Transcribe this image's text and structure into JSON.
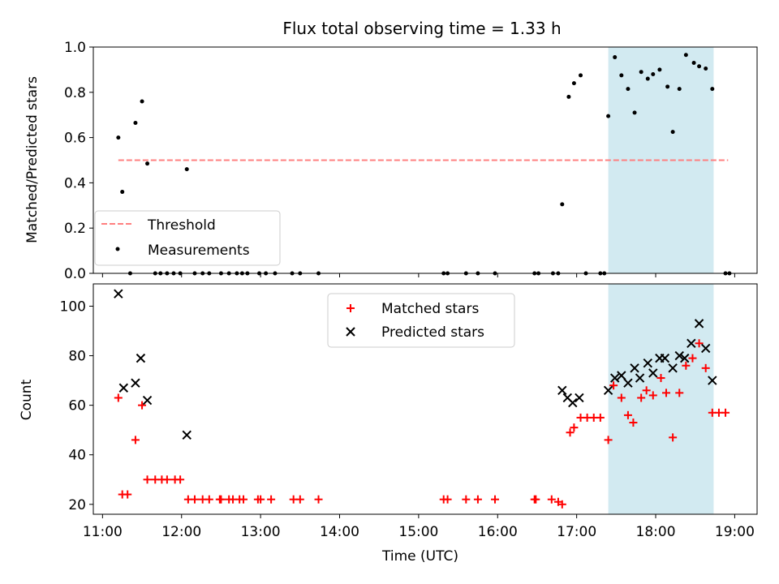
{
  "chart_data": [
    {
      "type": "scatter",
      "title": "Flux total observing time = 1.33 h",
      "xlabel": "",
      "ylabel": "Matched/Predicted stars",
      "ylim": [
        0,
        1.0
      ],
      "xlim": [
        "10:53",
        "19:17"
      ],
      "yticks": [
        "0.0",
        "0.2",
        "0.4",
        "0.6",
        "0.8",
        "1.0"
      ],
      "grid": false,
      "legend": {
        "placement": "lower-left",
        "entries": [
          "Threshold",
          "Measurements"
        ]
      },
      "shaded_span": {
        "start": "17:24",
        "end": "18:44",
        "color": "#add8e6"
      },
      "threshold": {
        "name": "Threshold",
        "value": 0.5,
        "x_start": "11:12",
        "x_end": "18:55",
        "color": "#ff7f7f"
      },
      "series": [
        {
          "name": "Measurements",
          "color": "#000000",
          "points": [
            [
              "11:12",
              0.6
            ],
            [
              "11:15",
              0.36
            ],
            [
              "11:21",
              0.0
            ],
            [
              "11:25",
              0.665
            ],
            [
              "11:30",
              0.76
            ],
            [
              "11:34",
              0.485
            ],
            [
              "11:40",
              0.0
            ],
            [
              "11:44",
              0.0
            ],
            [
              "11:49",
              0.0
            ],
            [
              "11:54",
              0.0
            ],
            [
              "11:59",
              0.0
            ],
            [
              "12:04",
              0.46
            ],
            [
              "12:10",
              0.0
            ],
            [
              "12:16",
              0.0
            ],
            [
              "12:21",
              0.0
            ],
            [
              "12:30",
              0.0
            ],
            [
              "12:36",
              0.0
            ],
            [
              "12:42",
              0.0
            ],
            [
              "12:46",
              0.0
            ],
            [
              "12:50",
              0.0
            ],
            [
              "12:59",
              0.0
            ],
            [
              "13:04",
              0.0
            ],
            [
              "13:11",
              0.0
            ],
            [
              "13:24",
              0.0
            ],
            [
              "13:30",
              0.0
            ],
            [
              "13:44",
              0.0
            ],
            [
              "15:19",
              0.0
            ],
            [
              "15:22",
              0.0
            ],
            [
              "15:36",
              0.0
            ],
            [
              "15:45",
              0.0
            ],
            [
              "15:58",
              0.0
            ],
            [
              "16:28",
              0.0
            ],
            [
              "16:31",
              0.0
            ],
            [
              "16:42",
              0.0
            ],
            [
              "16:46",
              0.0
            ],
            [
              "16:49",
              0.305
            ],
            [
              "16:54",
              0.78
            ],
            [
              "16:58",
              0.84
            ],
            [
              "17:03",
              0.875
            ],
            [
              "17:07",
              0.0
            ],
            [
              "17:18",
              0.0
            ],
            [
              "17:21",
              0.0
            ],
            [
              "17:24",
              0.695
            ],
            [
              "17:29",
              0.955
            ],
            [
              "17:34",
              0.875
            ],
            [
              "17:39",
              0.815
            ],
            [
              "17:44",
              0.71
            ],
            [
              "17:49",
              0.89
            ],
            [
              "17:54",
              0.86
            ],
            [
              "17:58",
              0.88
            ],
            [
              "18:03",
              0.9
            ],
            [
              "18:09",
              0.825
            ],
            [
              "18:13",
              0.625
            ],
            [
              "18:18",
              0.815
            ],
            [
              "18:23",
              0.965
            ],
            [
              "18:29",
              0.93
            ],
            [
              "18:33",
              0.915
            ],
            [
              "18:38",
              0.905
            ],
            [
              "18:43",
              0.815
            ],
            [
              "18:53",
              0.0
            ],
            [
              "18:56",
              0.0
            ]
          ]
        }
      ]
    },
    {
      "type": "scatter",
      "title": "",
      "xlabel": "Time (UTC)",
      "ylabel": "Count",
      "ylim": [
        16,
        109
      ],
      "xlim": [
        "10:53",
        "19:17"
      ],
      "yticks": [
        "20",
        "40",
        "60",
        "80",
        "100"
      ],
      "xticks": [
        "11:00",
        "12:00",
        "13:00",
        "14:00",
        "15:00",
        "16:00",
        "17:00",
        "18:00",
        "19:00"
      ],
      "grid": false,
      "legend": {
        "placement": "upper-center",
        "entries": [
          "Matched stars",
          "Predicted stars"
        ]
      },
      "shaded_span": {
        "start": "17:24",
        "end": "18:44",
        "color": "#add8e6"
      },
      "series": [
        {
          "name": "Matched stars",
          "color": "#ff0000",
          "marker": "+",
          "points": [
            [
              "11:12",
              63
            ],
            [
              "11:15",
              24
            ],
            [
              "11:19",
              24
            ],
            [
              "11:25",
              46
            ],
            [
              "11:30",
              60
            ],
            [
              "11:34",
              30
            ],
            [
              "11:40",
              30
            ],
            [
              "11:45",
              30
            ],
            [
              "11:49",
              30
            ],
            [
              "11:55",
              30
            ],
            [
              "11:59",
              30
            ],
            [
              "12:05",
              22
            ],
            [
              "12:10",
              22
            ],
            [
              "12:16",
              22
            ],
            [
              "12:21",
              22
            ],
            [
              "12:29",
              22
            ],
            [
              "12:30",
              22
            ],
            [
              "12:36",
              22
            ],
            [
              "12:39",
              22
            ],
            [
              "12:44",
              22
            ],
            [
              "12:47",
              22
            ],
            [
              "12:58",
              22
            ],
            [
              "13:00",
              22
            ],
            [
              "13:08",
              22
            ],
            [
              "13:25",
              22
            ],
            [
              "13:30",
              22
            ],
            [
              "13:44",
              22
            ],
            [
              "15:19",
              22
            ],
            [
              "15:22",
              22
            ],
            [
              "15:36",
              22
            ],
            [
              "15:45",
              22
            ],
            [
              "15:58",
              22
            ],
            [
              "16:28",
              22
            ],
            [
              "16:29",
              22
            ],
            [
              "16:41",
              22
            ],
            [
              "16:46",
              21
            ],
            [
              "16:49",
              20
            ],
            [
              "16:55",
              49
            ],
            [
              "16:58",
              51
            ],
            [
              "17:03",
              55
            ],
            [
              "17:08",
              55
            ],
            [
              "17:13",
              55
            ],
            [
              "17:18",
              55
            ],
            [
              "17:24",
              46
            ],
            [
              "17:28",
              68
            ],
            [
              "17:34",
              63
            ],
            [
              "17:39",
              56
            ],
            [
              "17:43",
              53
            ],
            [
              "17:49",
              63
            ],
            [
              "17:53",
              66
            ],
            [
              "17:58",
              64
            ],
            [
              "18:04",
              71
            ],
            [
              "18:08",
              65
            ],
            [
              "18:13",
              47
            ],
            [
              "18:18",
              65
            ],
            [
              "18:23",
              76
            ],
            [
              "18:28",
              79
            ],
            [
              "18:33",
              85
            ],
            [
              "18:38",
              75
            ],
            [
              "18:43",
              57
            ],
            [
              "18:48",
              57
            ],
            [
              "18:53",
              57
            ]
          ]
        },
        {
          "name": "Predicted stars",
          "color": "#000000",
          "marker": "x",
          "points": [
            [
              "11:12",
              105
            ],
            [
              "11:16",
              67
            ],
            [
              "11:25",
              69
            ],
            [
              "11:29",
              79
            ],
            [
              "11:34",
              62
            ],
            [
              "12:04",
              48
            ],
            [
              "16:49",
              66
            ],
            [
              "16:53",
              63
            ],
            [
              "16:57",
              61
            ],
            [
              "17:02",
              63
            ],
            [
              "17:24",
              66
            ],
            [
              "17:29",
              71
            ],
            [
              "17:34",
              72
            ],
            [
              "17:39",
              69
            ],
            [
              "17:44",
              75
            ],
            [
              "17:48",
              71
            ],
            [
              "17:54",
              77
            ],
            [
              "17:58",
              73
            ],
            [
              "18:03",
              79
            ],
            [
              "18:07",
              79
            ],
            [
              "18:13",
              75
            ],
            [
              "18:18",
              80
            ],
            [
              "18:22",
              79
            ],
            [
              "18:27",
              85
            ],
            [
              "18:33",
              93
            ],
            [
              "18:38",
              83
            ],
            [
              "18:43",
              70
            ]
          ]
        }
      ]
    }
  ]
}
